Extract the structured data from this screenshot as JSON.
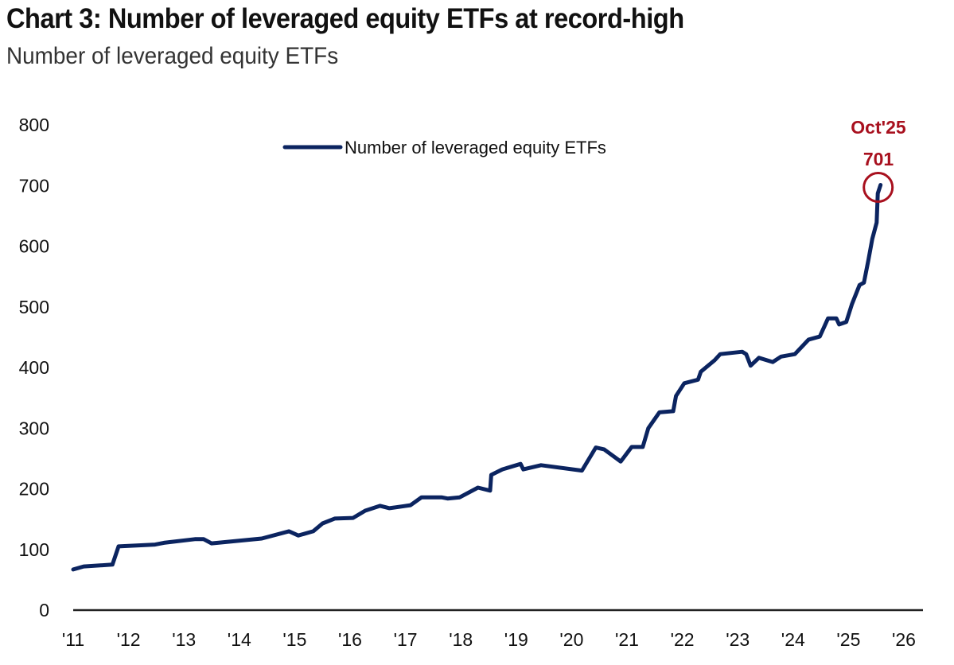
{
  "chart_data": {
    "type": "line",
    "title": "Chart 3: Number of leveraged equity ETFs at record-high",
    "subtitle": "Number of leveraged equity ETFs",
    "xlabel": "",
    "ylabel": "",
    "ylim": [
      0,
      800
    ],
    "xlim": [
      2011,
      2026
    ],
    "y_ticks": [
      "0",
      "100",
      "200",
      "300",
      "400",
      "500",
      "600",
      "700",
      "800"
    ],
    "x_ticks": [
      "'11",
      "'12",
      "'13",
      "'14",
      "'15",
      "'16",
      "'17",
      "'18",
      "'19",
      "'20",
      "'21",
      "'22",
      "'23",
      "'24",
      "'25",
      "'26"
    ],
    "grid": false,
    "legend_position": "top-center",
    "series": [
      {
        "name": "Number of leveraged equity ETFs",
        "color": "#0b2460",
        "x": [
          2011.0,
          2011.19,
          2011.71,
          2011.82,
          2012.48,
          2012.64,
          2013.2,
          2013.36,
          2013.5,
          2014.41,
          2014.9,
          2015.07,
          2015.34,
          2015.51,
          2015.73,
          2016.06,
          2016.28,
          2016.55,
          2016.72,
          2017.1,
          2017.3,
          2017.66,
          2017.77,
          2017.99,
          2018.32,
          2018.54,
          2018.56,
          2018.76,
          2019.09,
          2019.14,
          2019.46,
          2020.2,
          2020.45,
          2020.6,
          2020.9,
          2021.1,
          2021.3,
          2021.4,
          2021.6,
          2021.85,
          2021.9,
          2022.05,
          2022.3,
          2022.35,
          2022.6,
          2022.7,
          2023.1,
          2023.17,
          2023.25,
          2023.4,
          2023.65,
          2023.8,
          2024.05,
          2024.3,
          2024.5,
          2024.65,
          2024.8,
          2024.85,
          2024.98,
          2025.08,
          2025.22,
          2025.3,
          2025.38,
          2025.45,
          2025.53,
          2025.55,
          2025.6
        ],
        "y": [
          67,
          72,
          75,
          105,
          108,
          111,
          117,
          117,
          110,
          118,
          130,
          123,
          130,
          143,
          151,
          152,
          164,
          172,
          168,
          173,
          186,
          186,
          184,
          186,
          202,
          197,
          223,
          232,
          241,
          232,
          239,
          230,
          268,
          265,
          245,
          269,
          269,
          300,
          326,
          328,
          353,
          374,
          380,
          393,
          412,
          422,
          426,
          422,
          403,
          416,
          409,
          418,
          422,
          446,
          451,
          481,
          481,
          471,
          475,
          504,
          536,
          540,
          577,
          612,
          639,
          687,
          701
        ]
      }
    ],
    "annotations": [
      {
        "label": "Oct'25",
        "value": "701",
        "x": 2025.6,
        "y": 701,
        "color": "#a8101e"
      }
    ]
  }
}
